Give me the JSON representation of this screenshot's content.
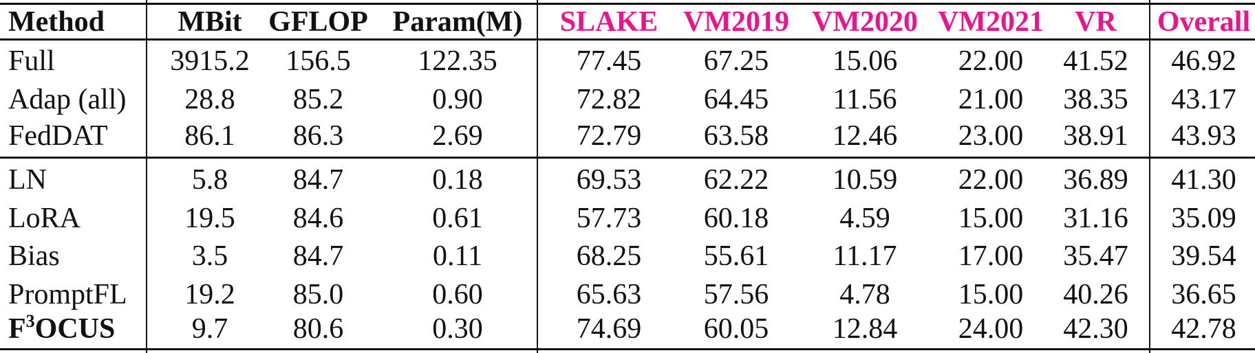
{
  "table": {
    "headers": {
      "method": "Method",
      "mbit": "MBit",
      "gflop": "GFLOP",
      "param": "Param(M)",
      "slake": "SLAKE",
      "vm2019": "VM2019",
      "vm2020": "VM2020",
      "vm2021": "VM2021",
      "vr": "VR",
      "overall": "Overall"
    },
    "header_accent_color": "#E8158E",
    "rows": [
      {
        "method": "Full",
        "mbit": "3915.2",
        "gflop": "156.5",
        "param": "122.35",
        "slake": "77.45",
        "vm2019": "67.25",
        "vm2020": "15.06",
        "vm2021": "22.00",
        "vr": "41.52",
        "overall": "46.92"
      },
      {
        "method": "Adap (all)",
        "mbit": "28.8",
        "gflop": "85.2",
        "param": "0.90",
        "slake": "72.82",
        "vm2019": "64.45",
        "vm2020": "11.56",
        "vm2021": "21.00",
        "vr": "38.35",
        "overall": "43.17"
      },
      {
        "method": "FedDAT",
        "mbit": "86.1",
        "gflop": "86.3",
        "param": "2.69",
        "slake": "72.79",
        "vm2019": "63.58",
        "vm2020": "12.46",
        "vm2021": "23.00",
        "vr": "38.91",
        "overall": "43.93"
      },
      {
        "method": "LN",
        "mbit": "5.8",
        "gflop": "84.7",
        "param": "0.18",
        "slake": "69.53",
        "vm2019": "62.22",
        "vm2020": "10.59",
        "vm2021": "22.00",
        "vr": "36.89",
        "overall": "41.30"
      },
      {
        "method": "LoRA",
        "mbit": "19.5",
        "gflop": "84.6",
        "param": "0.61",
        "slake": "57.73",
        "vm2019": "60.18",
        "vm2020": "4.59",
        "vm2021": "15.00",
        "vr": "31.16",
        "overall": "35.09"
      },
      {
        "method": "Bias",
        "mbit": "3.5",
        "gflop": "84.7",
        "param": "0.11",
        "slake": "68.25",
        "vm2019": "55.61",
        "vm2020": "11.17",
        "vm2021": "17.00",
        "vr": "35.47",
        "overall": "39.54"
      },
      {
        "method": "PromptFL",
        "mbit": "19.2",
        "gflop": "85.0",
        "param": "0.60",
        "slake": "65.63",
        "vm2019": "57.56",
        "vm2020": "4.78",
        "vm2021": "15.00",
        "vr": "40.26",
        "overall": "36.65"
      },
      {
        "method_base": "F",
        "method_sup": "3",
        "method_rest": "OCUS",
        "mbit": "9.7",
        "gflop": "80.6",
        "param": "0.30",
        "slake": "74.69",
        "vm2019": "60.05",
        "vm2020": "12.84",
        "vm2021": "24.00",
        "vr": "42.30",
        "overall": "42.78"
      }
    ]
  }
}
